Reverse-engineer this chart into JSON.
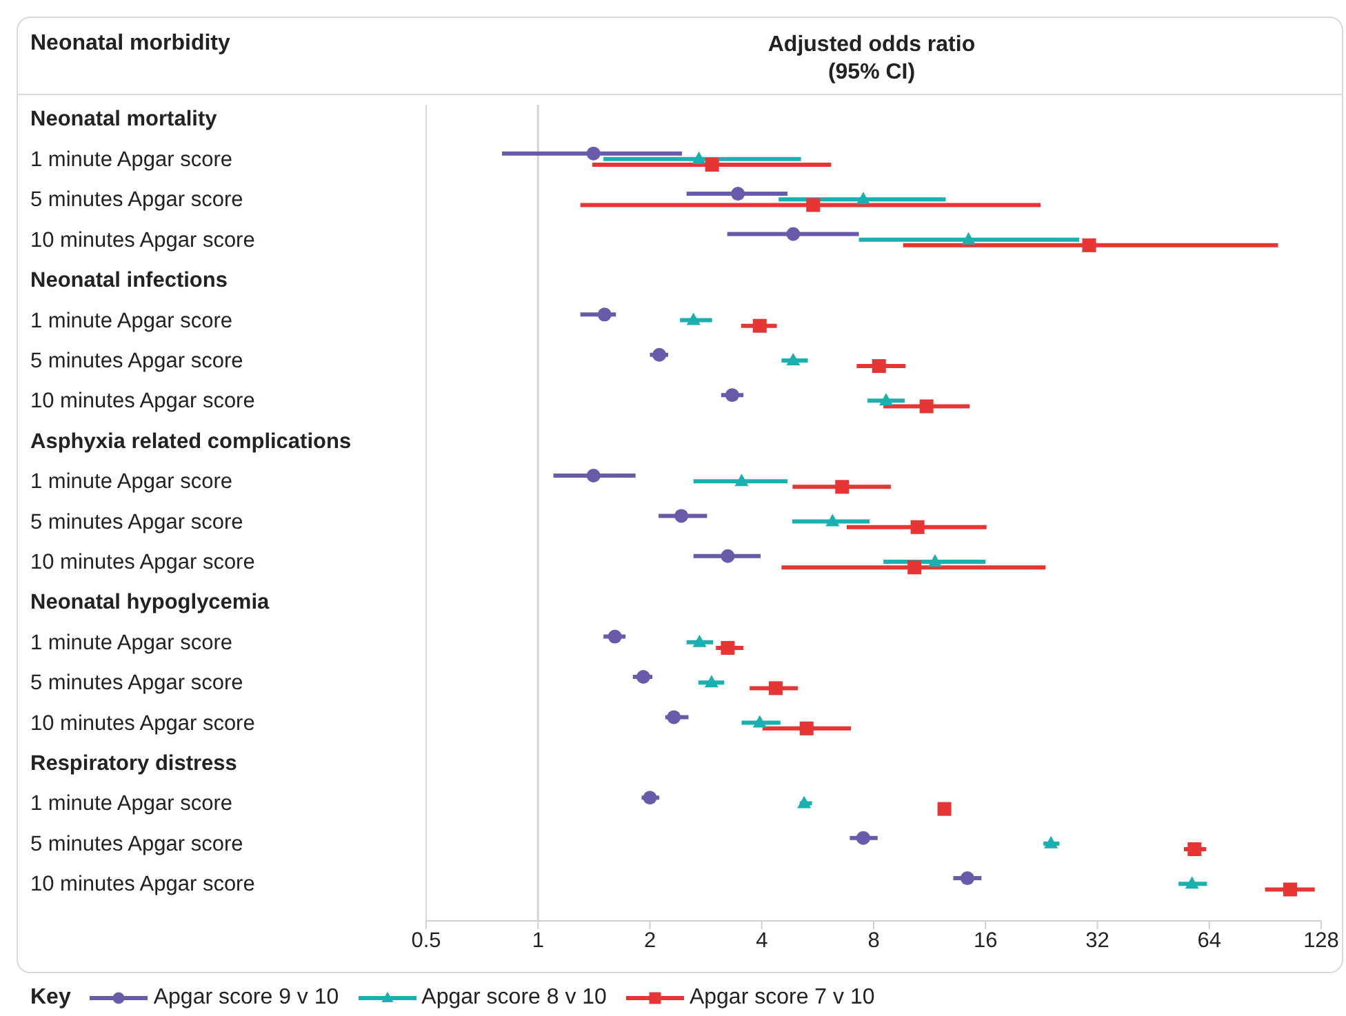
{
  "chart_data": {
    "type": "scatter",
    "orientation": "horizontal",
    "ylabel": "Neonatal morbidity",
    "xlabel": "Adjusted odds ratio (95% CI)",
    "legend_title": "Key",
    "legend": "bottom",
    "log": "x",
    "grid": false,
    "categories": [
      "Neonatal mortality",
      "1 minute Apgar score",
      "5 minutes Apgar score",
      "10 minutes Apgar score",
      "Neonatal infections",
      "1 minute Apgar score",
      "5 minutes Apgar score",
      "10 minutes Apgar score",
      "Asphyxia related complications",
      "1 minute Apgar score",
      "5 minutes Apgar score",
      "10 minutes Apgar score",
      "Neonatal hypoglycemia",
      "1 minute Apgar score",
      "5 minutes Apgar score",
      "10 minutes Apgar score",
      "Respiratory distress",
      "1 minute Apgar score",
      "5 minutes Apgar score",
      "10 minutes Apgar score"
    ],
    "xlim": [
      0.5,
      128
    ],
    "xticks": [
      0.5,
      1,
      2,
      4,
      8,
      16,
      32,
      64,
      128
    ],
    "ref_lines": [
      {
        "axis": "x",
        "value": 1,
        "color": "#d4d4dc"
      }
    ],
    "series": [
      {
        "name": "Apgar score 9 v 10",
        "color": "#6a5aaa",
        "marker": "circle",
        "values": [
          null,
          1.41,
          3.45,
          4.86,
          null,
          1.51,
          2.12,
          3.33,
          null,
          1.41,
          2.43,
          3.24,
          null,
          1.61,
          1.92,
          2.32,
          null,
          2.0,
          7.5,
          14.3
        ],
        "errors": [
          null,
          [
            0.8,
            2.44
          ],
          [
            2.51,
            4.69
          ],
          [
            3.23,
            7.3
          ],
          null,
          [
            1.3,
            1.62
          ],
          [
            2.0,
            2.24
          ],
          [
            3.11,
            3.57
          ],
          null,
          [
            1.1,
            1.83
          ],
          [
            2.11,
            2.85
          ],
          [
            2.62,
            3.97
          ],
          null,
          [
            1.5,
            1.72
          ],
          [
            1.8,
            2.03
          ],
          [
            2.2,
            2.54
          ],
          null,
          [
            1.9,
            2.12
          ],
          [
            6.9,
            8.2
          ],
          [
            13.1,
            15.6
          ]
        ]
      },
      {
        "name": "Apgar score 8 v 10",
        "color": "#1ab0b0",
        "marker": "triangle",
        "values": [
          null,
          2.71,
          7.5,
          14.4,
          null,
          2.62,
          4.86,
          8.64,
          null,
          3.53,
          6.2,
          11.7,
          null,
          2.72,
          2.93,
          3.95,
          null,
          5.2,
          24,
          57.5
        ],
        "errors": [
          null,
          [
            1.5,
            5.1
          ],
          [
            4.44,
            12.5
          ],
          [
            7.3,
            28.6
          ],
          null,
          [
            2.41,
            2.94
          ],
          [
            4.52,
            5.32
          ],
          [
            7.7,
            9.7
          ],
          null,
          [
            2.62,
            4.69
          ],
          [
            4.83,
            7.8
          ],
          [
            8.5,
            16
          ],
          null,
          [
            2.51,
            2.96
          ],
          [
            2.7,
            3.17
          ],
          [
            3.53,
            4.49
          ],
          null,
          [
            5.06,
            5.46
          ],
          [
            22.9,
            25.3
          ],
          [
            52.9,
            63.1
          ]
        ]
      },
      {
        "name": "Apgar score 7 v 10",
        "color": "#e53535",
        "marker": "square",
        "values": [
          null,
          2.94,
          5.5,
          30.4,
          null,
          3.95,
          8.27,
          11.1,
          null,
          6.58,
          10.5,
          10.3,
          null,
          3.24,
          4.36,
          5.28,
          null,
          12.4,
          58.4,
          105.6
        ],
        "errors": [
          null,
          [
            1.4,
            6.15
          ],
          [
            1.3,
            22.5
          ],
          [
            9.6,
            98
          ],
          null,
          [
            3.52,
            4.39
          ],
          [
            7.2,
            9.75
          ],
          [
            8.5,
            14.5
          ],
          null,
          [
            4.84,
            8.9
          ],
          [
            6.77,
            16.1
          ],
          [
            4.52,
            23.2
          ],
          null,
          [
            3.01,
            3.57
          ],
          [
            3.71,
            5
          ],
          [
            4.02,
            6.95
          ],
          null,
          [
            12,
            12.9
          ],
          [
            54.7,
            62.8
          ],
          [
            90.4,
            123
          ]
        ]
      }
    ]
  }
}
